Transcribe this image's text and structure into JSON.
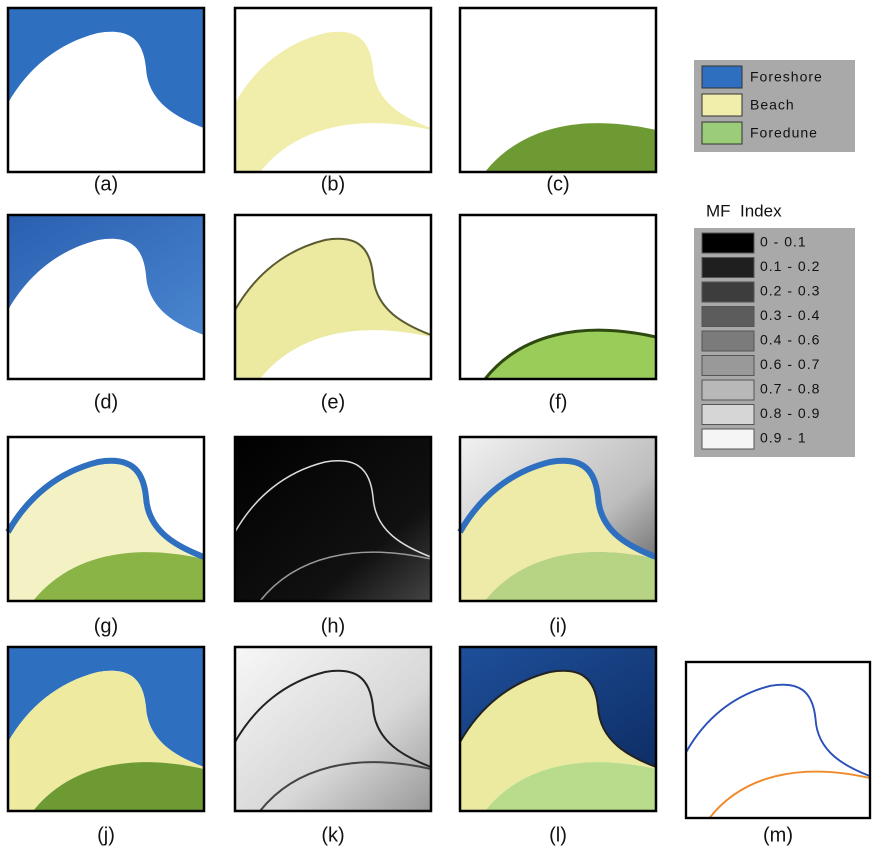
{
  "panels": [
    {
      "label": "(a)"
    },
    {
      "label": "(b)"
    },
    {
      "label": "(c)"
    },
    {
      "label": "(d)"
    },
    {
      "label": "(e)"
    },
    {
      "label": "(f)"
    },
    {
      "label": "(g)"
    },
    {
      "label": "(h)"
    },
    {
      "label": "(i)"
    },
    {
      "label": "(j)"
    },
    {
      "label": "(k)"
    },
    {
      "label": "(l)"
    },
    {
      "label": "(m)"
    }
  ],
  "class_legend": {
    "items": [
      "Foreshore",
      "Beach",
      "Foredune"
    ]
  },
  "mf_legend": {
    "title": "MF  Index",
    "ranges": [
      "0 - 0.1",
      "0.1 - 0.2",
      "0.2 - 0.3",
      "0.3 - 0.4",
      "0.4 - 0.6",
      "0.6 - 0.7",
      "0.7 - 0.8",
      "0.8 - 0.9",
      "0.9 - 1"
    ]
  }
}
